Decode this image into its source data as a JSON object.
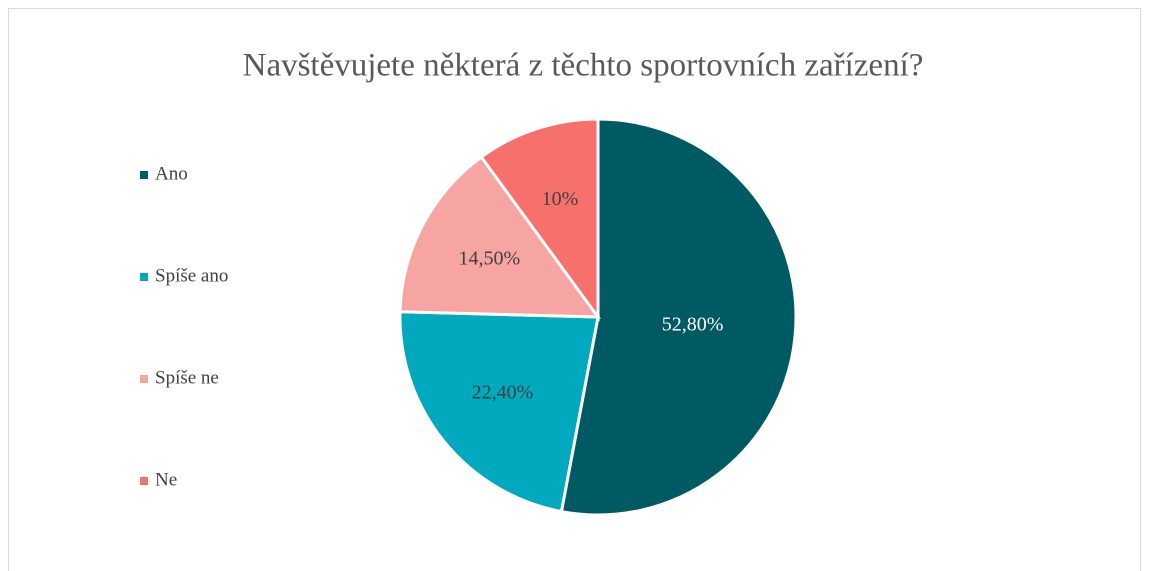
{
  "chart_data": {
    "type": "pie",
    "title": "Navštěvujete některá z těchto sportovních zařízení?",
    "categories": [
      "Ano",
      "Spíše ano",
      "Spíše ne",
      "Ne"
    ],
    "values": [
      52.8,
      22.4,
      14.5,
      10
    ],
    "value_labels": [
      "52,80%",
      "22,40%",
      "14,50%",
      "10%"
    ],
    "colors": [
      "#005a64",
      "#00a9bd",
      "#f7a5a3",
      "#f6706c"
    ],
    "legend": "left"
  }
}
